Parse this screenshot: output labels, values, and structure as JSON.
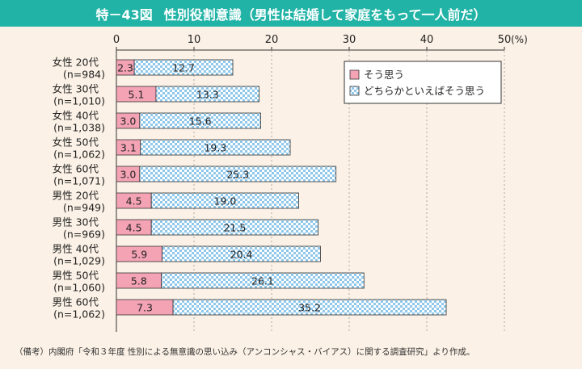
{
  "figure": {
    "number": "特－43図",
    "title": "性別役割意識（男性は結婚して家庭をもって一人前だ）",
    "axis_unit": "(%)",
    "note": "（備考）内閣府「令和３年度 性別による無意識の思い込み（アンコンシャス・バイアス）に関する調査研究」より作成。"
  },
  "colors": {
    "title_bg": "#21b3a6",
    "background": "#fbf1e6",
    "agree": "#f4a3b5",
    "somewhat_agree_base": "#8fc7ea",
    "somewhat_agree_check": "#ffffff"
  },
  "chart_data": {
    "type": "bar",
    "orientation": "horizontal",
    "stacked": true,
    "xlim": [
      0,
      50
    ],
    "xticks": [
      0,
      10,
      20,
      30,
      40,
      50
    ],
    "legend_position": "top-right",
    "categories": [
      {
        "label": "女性 20代",
        "n": "(n=984)"
      },
      {
        "label": "女性 30代",
        "n": "(n=1,010)"
      },
      {
        "label": "女性 40代",
        "n": "(n=1,038)"
      },
      {
        "label": "女性 50代",
        "n": "(n=1,062)"
      },
      {
        "label": "女性 60代",
        "n": "(n=1,071)"
      },
      {
        "label": "男性 20代",
        "n": "(n=949)"
      },
      {
        "label": "男性 30代",
        "n": "(n=969)"
      },
      {
        "label": "男性 40代",
        "n": "(n=1,029)"
      },
      {
        "label": "男性 50代",
        "n": "(n=1,060)"
      },
      {
        "label": "男性 60代",
        "n": "(n=1,062)"
      }
    ],
    "series": [
      {
        "name": "そう思う",
        "values": [
          2.3,
          5.1,
          3.0,
          3.1,
          3.0,
          4.5,
          4.5,
          5.9,
          5.8,
          7.3
        ]
      },
      {
        "name": "どちらかといえばそう思う",
        "values": [
          12.7,
          13.3,
          15.6,
          19.3,
          25.3,
          19.0,
          21.5,
          20.4,
          26.1,
          35.2
        ]
      }
    ]
  }
}
